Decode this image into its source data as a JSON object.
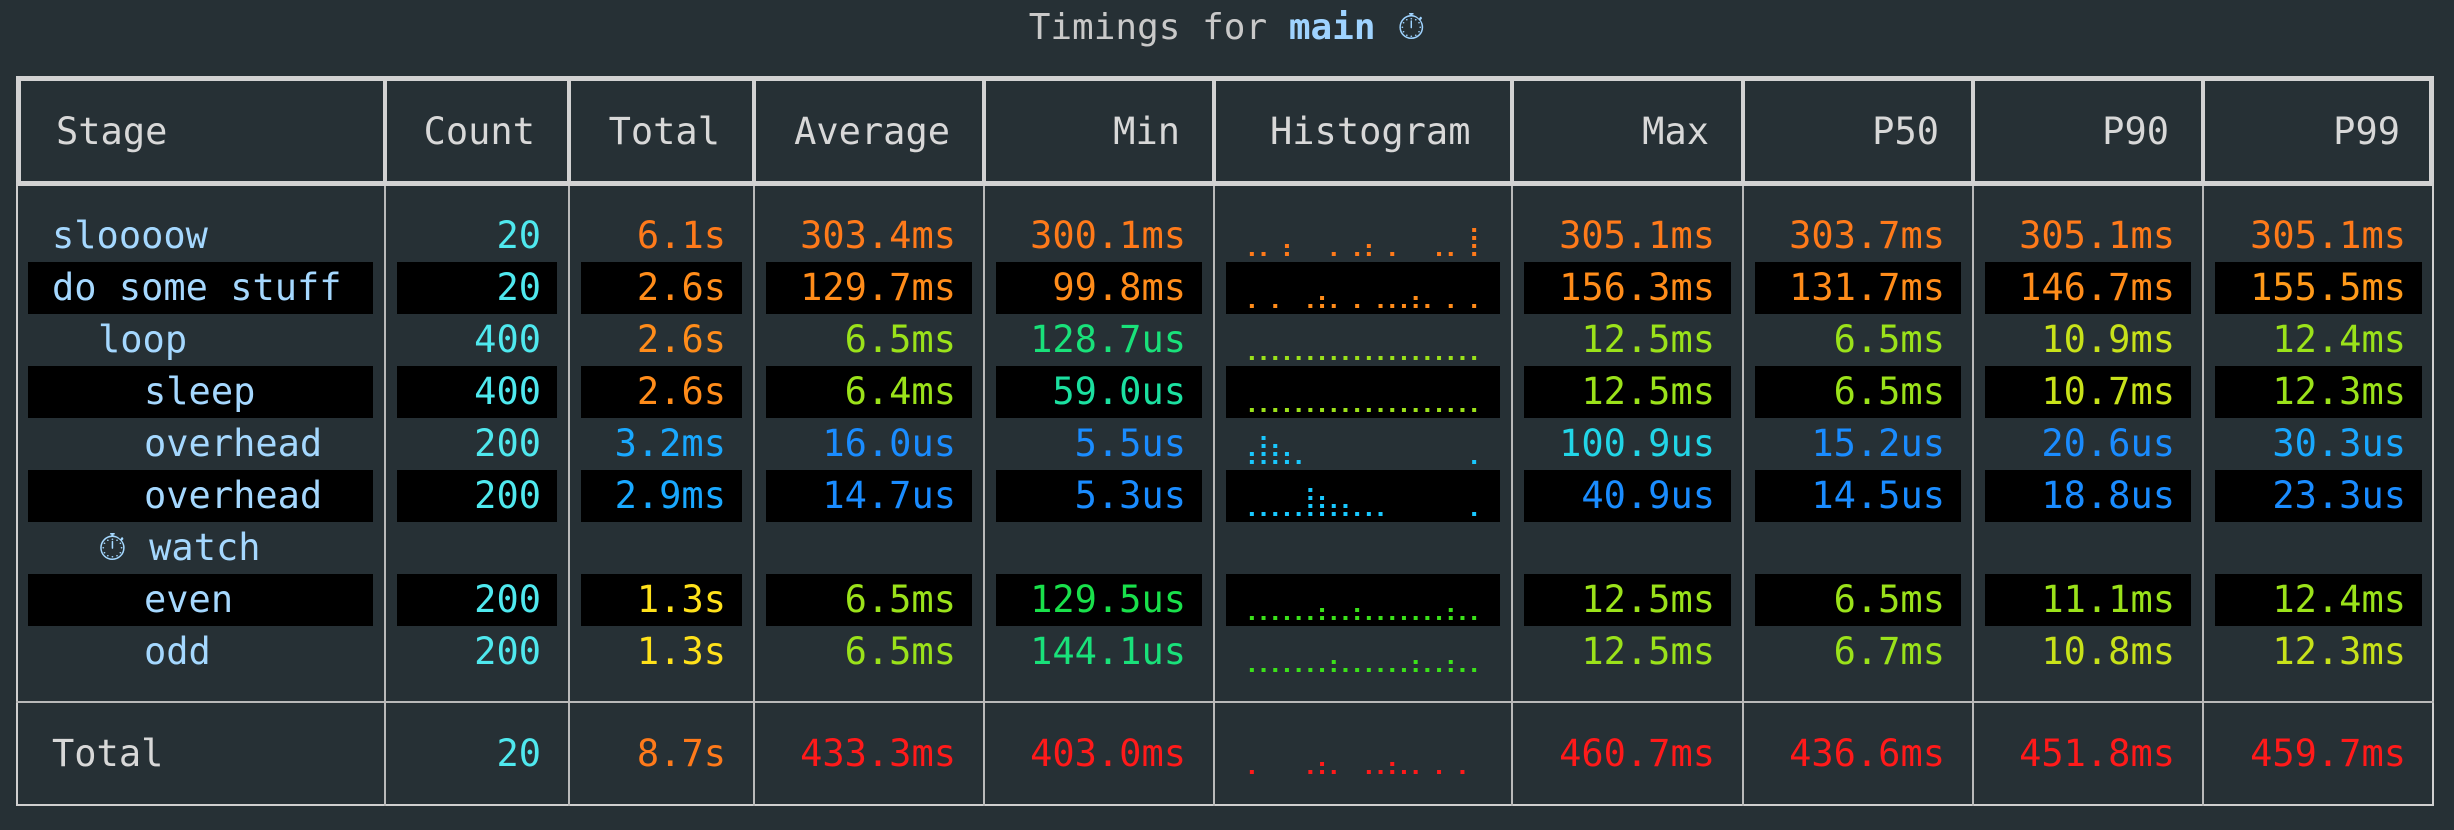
{
  "title": {
    "prefix": "Timings for",
    "function": "main",
    "icon": "stopwatch-icon"
  },
  "columns": [
    "Stage",
    "Count",
    "Total",
    "Average",
    "Min",
    "Histogram",
    "Max",
    "P50",
    "P90",
    "P99"
  ],
  "colors": {
    "orange": "#ff7a1a",
    "orange2": "#ff8c1a",
    "yellow": "#ffe11a",
    "lime": "#9be21a",
    "green": "#19e14b",
    "cyan": "#19c8ff",
    "blue": "#1a8cff",
    "red": "#ff1a1a",
    "teal": "#1be0a0",
    "lightcyan": "#22d6e8"
  },
  "rows": [
    {
      "stage": "sloooow",
      "indent": 0,
      "count": "20",
      "total": "6.1s",
      "average": "303.4ms",
      "min": "300.1ms",
      "max": "305.1ms",
      "p50": "303.7ms",
      "p90": "305.1ms",
      "p99": "305.1ms",
      "c_total": "#ff7a1a",
      "c_avg": "#ff7a1a",
      "c_min": "#ff7a1a",
      "c_max": "#ff7a1a",
      "c_p50": "#ff7a1a",
      "c_p90": "#ff7a1a",
      "c_p99": "#ff7a1a",
      "hist_color": "#ff7a1a",
      "hist": [
        1,
        1,
        0,
        2,
        0,
        0,
        0,
        1,
        0,
        1,
        2,
        0,
        1,
        0,
        0,
        0,
        1,
        1,
        0,
        4
      ],
      "black": false
    },
    {
      "stage": "do some stuff",
      "indent": 0,
      "count": "20",
      "total": "2.6s",
      "average": "129.7ms",
      "min": "99.8ms",
      "max": "156.3ms",
      "p50": "131.7ms",
      "p90": "146.7ms",
      "p99": "155.5ms",
      "c_total": "#ff8c1a",
      "c_avg": "#ff8c1a",
      "c_min": "#ff8c1a",
      "c_max": "#ff8c1a",
      "c_p50": "#ff8c1a",
      "c_p90": "#ff8c1a",
      "c_p99": "#ff9a1a",
      "hist_color": "#ff8c1a",
      "hist": [
        1,
        0,
        1,
        0,
        0,
        1,
        2,
        1,
        0,
        1,
        0,
        1,
        1,
        1,
        2,
        1,
        0,
        1,
        0,
        1
      ],
      "black": true
    },
    {
      "stage": "loop",
      "indent": 1,
      "count": "400",
      "total": "2.6s",
      "average": "6.5ms",
      "min": "128.7us",
      "max": "12.5ms",
      "p50": "6.5ms",
      "p90": "10.9ms",
      "p99": "12.4ms",
      "c_total": "#ff8c1a",
      "c_avg": "#9be21a",
      "c_min": "#19e17a",
      "c_max": "#9be21a",
      "c_p50": "#9be21a",
      "c_p90": "#c8e21a",
      "c_p99": "#9be21a",
      "hist_color": "#9be21a",
      "hist": [
        1,
        1,
        1,
        1,
        1,
        1,
        1,
        1,
        1,
        1,
        1,
        1,
        1,
        1,
        1,
        1,
        1,
        1,
        1,
        1
      ],
      "black": false
    },
    {
      "stage": "sleep",
      "indent": 2,
      "count": "400",
      "total": "2.6s",
      "average": "6.4ms",
      "min": "59.0us",
      "max": "12.5ms",
      "p50": "6.5ms",
      "p90": "10.7ms",
      "p99": "12.3ms",
      "c_total": "#ff8c1a",
      "c_avg": "#9be21a",
      "c_min": "#1be0a0",
      "c_max": "#9be21a",
      "c_p50": "#9be21a",
      "c_p90": "#c8e21a",
      "c_p99": "#9be21a",
      "hist_color": "#9be21a",
      "hist": [
        1,
        1,
        1,
        1,
        1,
        1,
        1,
        1,
        1,
        1,
        1,
        1,
        1,
        1,
        1,
        1,
        1,
        1,
        1,
        1
      ],
      "black": true
    },
    {
      "stage": "overhead",
      "indent": 2,
      "count": "200",
      "total": "3.2ms",
      "average": "16.0us",
      "min": "5.5us",
      "max": "100.9us",
      "p50": "15.2us",
      "p90": "20.6us",
      "p99": "30.3us",
      "c_total": "#19a8ff",
      "c_avg": "#1a8cff",
      "c_min": "#1a8cff",
      "c_max": "#22d6e8",
      "c_p50": "#1a8cff",
      "c_p90": "#1a8cff",
      "c_p99": "#19a8ff",
      "hist_color": "#19c8ff",
      "hist": [
        2,
        4,
        3,
        2,
        1,
        0,
        0,
        0,
        0,
        0,
        0,
        0,
        0,
        0,
        0,
        0,
        0,
        0,
        0,
        1
      ],
      "black": false
    },
    {
      "stage": "overhead",
      "indent": 2,
      "count": "200",
      "total": "2.9ms",
      "average": "14.7us",
      "min": "5.3us",
      "max": "40.9us",
      "p50": "14.5us",
      "p90": "18.8us",
      "p99": "23.3us",
      "c_total": "#19a8ff",
      "c_avg": "#1a8cff",
      "c_min": "#1a8cff",
      "c_max": "#1a8cff",
      "c_p50": "#1a8cff",
      "c_p90": "#1a8cff",
      "c_p99": "#1a8cff",
      "hist_color": "#19c8ff",
      "hist": [
        1,
        1,
        1,
        1,
        1,
        4,
        3,
        2,
        2,
        1,
        1,
        1,
        0,
        0,
        0,
        0,
        0,
        0,
        0,
        1
      ],
      "black": true
    },
    {
      "stage": "watch",
      "indent": 1,
      "count": "",
      "total": "",
      "average": "",
      "min": "",
      "max": "",
      "p50": "",
      "p90": "",
      "p99": "",
      "icon": "stopwatch-icon",
      "hist": [],
      "black": false
    },
    {
      "stage": "even",
      "indent": 2,
      "count": "200",
      "total": "1.3s",
      "average": "6.5ms",
      "min": "129.5us",
      "max": "12.5ms",
      "p50": "6.5ms",
      "p90": "11.1ms",
      "p99": "12.4ms",
      "c_total": "#ffe11a",
      "c_avg": "#9be21a",
      "c_min": "#19e14b",
      "c_max": "#9be21a",
      "c_p50": "#9be21a",
      "c_p90": "#9be21a",
      "c_p99": "#9be21a",
      "hist_color": "#3be21a",
      "hist": [
        1,
        1,
        1,
        1,
        1,
        1,
        2,
        1,
        1,
        2,
        1,
        1,
        1,
        1,
        1,
        1,
        1,
        2,
        1,
        1
      ],
      "black": true
    },
    {
      "stage": "odd",
      "indent": 2,
      "count": "200",
      "total": "1.3s",
      "average": "6.5ms",
      "min": "144.1us",
      "max": "12.5ms",
      "p50": "6.7ms",
      "p90": "10.8ms",
      "p99": "12.3ms",
      "c_total": "#ffe11a",
      "c_avg": "#9be21a",
      "c_min": "#19e17a",
      "c_max": "#9be21a",
      "c_p50": "#9be21a",
      "c_p90": "#c8e21a",
      "c_p99": "#c8e21a",
      "hist_color": "#3be21a",
      "hist": [
        1,
        1,
        1,
        1,
        1,
        1,
        1,
        2,
        1,
        1,
        1,
        1,
        1,
        1,
        2,
        1,
        1,
        2,
        1,
        1
      ],
      "black": false
    }
  ],
  "total": {
    "stage": "Total",
    "count": "20",
    "total": "8.7s",
    "average": "433.3ms",
    "min": "403.0ms",
    "max": "460.7ms",
    "p50": "436.6ms",
    "p90": "451.8ms",
    "p99": "459.7ms",
    "c_total": "#ff7a1a",
    "color": "#ff1a1a",
    "hist": [
      1,
      0,
      0,
      0,
      0,
      1,
      2,
      1,
      0,
      0,
      1,
      1,
      2,
      1,
      1,
      0,
      1,
      0,
      1,
      0
    ]
  }
}
